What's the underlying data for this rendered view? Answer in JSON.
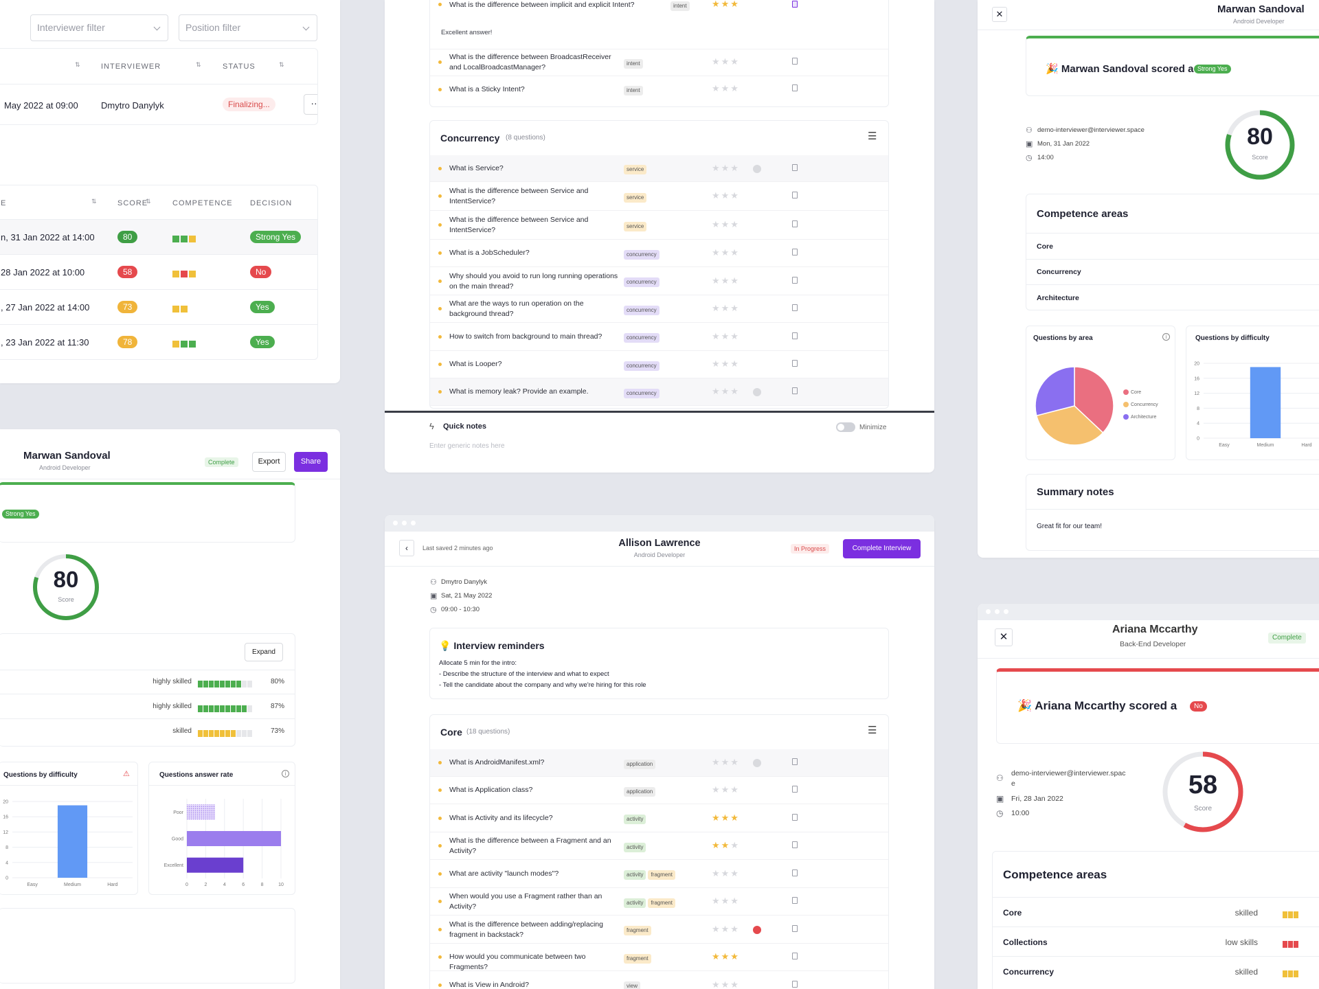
{
  "p1": {
    "filters": {
      "interviewer": "Interviewer filter",
      "position": "Position filter"
    },
    "headers": {
      "interviewer": "INTERVIEWER",
      "status": "STATUS"
    },
    "row": {
      "date": "May 2022 at 09:00",
      "interviewer": "Dmytro Danylyk",
      "status": "Finalizing..."
    }
  },
  "p2": {
    "headers": {
      "date": "E",
      "score": "SCORE",
      "competence": "COMPETENCE",
      "decision": "DECISION"
    },
    "rows": [
      {
        "date": "n, 31 Jan 2022 at 14:00",
        "score": "80",
        "decision": "Strong Yes"
      },
      {
        "date": "28 Jan 2022 at 10:00",
        "score": "58",
        "decision": "No"
      },
      {
        "date": ", 27 Jan 2022 at 14:00",
        "score": "73",
        "decision": "Yes"
      },
      {
        "date": ", 23 Jan 2022 at 11:30",
        "score": "78",
        "decision": "Yes"
      }
    ]
  },
  "p3": {
    "q_top": [
      {
        "text": "What is the difference between implicit and explicit Intent?",
        "tags": [
          "intent"
        ]
      },
      {
        "text": "What is the difference between BroadcastReceiver and LocalBroadcastManager?",
        "tags": [
          "intent"
        ]
      },
      {
        "text": "What is a Sticky Intent?",
        "tags": [
          "intent"
        ]
      }
    ],
    "note": "Excellent answer!",
    "concurrency": {
      "title": "Concurrency",
      "count": "(8 questions)"
    },
    "q_conc": [
      {
        "text": "What is Service?",
        "tags": [
          "service"
        ]
      },
      {
        "text": "What is the difference between Service and IntentService?",
        "tags": [
          "service"
        ]
      },
      {
        "text": "What is the difference between Service and IntentService?",
        "tags": [
          "service"
        ]
      },
      {
        "text": "What is a JobScheduler?",
        "tags": [
          "concurrency"
        ]
      },
      {
        "text": "Why should you avoid to run long running operations on the main thread?",
        "tags": [
          "concurrency"
        ]
      },
      {
        "text": "What are the ways to run operation on the background thread?",
        "tags": [
          "concurrency"
        ]
      },
      {
        "text": "How to switch from background to main thread?",
        "tags": [
          "concurrency"
        ]
      },
      {
        "text": "What is Looper?",
        "tags": [
          "concurrency"
        ]
      },
      {
        "text": "What is memory leak? Provide an example.",
        "tags": [
          "concurrency"
        ]
      }
    ],
    "quick_notes": {
      "title": "Quick notes",
      "placeholder": "Enter generic notes here",
      "minimize": "Minimize"
    }
  },
  "p4": {
    "name": "Marwan Sandoval",
    "role": "Android Developer",
    "scored": "🎉 Marwan Sandoval scored a",
    "decision": "Strong Yes",
    "email": "demo-interviewer@interviewer.space",
    "date": "Mon, 31 Jan 2022",
    "time": "14:00",
    "score": "80",
    "score_label": "Score",
    "competence_title": "Competence areas",
    "areas": [
      "Core",
      "Concurrency",
      "Architecture"
    ],
    "qa_title": "Questions by area",
    "qd_title": "Questions by difficulty",
    "legend": [
      "Core",
      "Concurrency",
      "Architecture"
    ],
    "yticks": [
      "20",
      "16",
      "12",
      "8",
      "4",
      "0"
    ],
    "xcats": [
      "Easy",
      "Medium",
      "Hard"
    ],
    "summary_title": "Summary notes",
    "summary": "Great fit for our team!"
  },
  "p5": {
    "name": "Marwan Sandoval",
    "role": "Android Developer",
    "status": "Complete",
    "export": "Export",
    "share": "Share",
    "decision": "Strong Yes",
    "score": "80",
    "score_label": "Score",
    "expand": "Expand",
    "skills": [
      {
        "level": "highly skilled",
        "pct": "80%"
      },
      {
        "level": "highly skilled",
        "pct": "87%"
      },
      {
        "level": "skilled",
        "pct": "73%"
      }
    ],
    "qd_title": "Questions by difficulty",
    "qar_title": "Questions answer rate",
    "yticks": [
      "20",
      "16",
      "12",
      "8",
      "4",
      "0"
    ],
    "xcats": [
      "Easy",
      "Medium",
      "Hard"
    ],
    "rate_cats": [
      "Poor",
      "Good",
      "Excellent"
    ],
    "rate_ticks": [
      "0",
      "2",
      "4",
      "6",
      "8",
      "10"
    ]
  },
  "p6": {
    "saved": "Last saved 2 minutes ago",
    "name": "Allison Lawrence",
    "role": "Android Developer",
    "status": "In Progress",
    "complete_btn": "Complete Interview",
    "interviewer": "Dmytro Danylyk",
    "date": "Sat, 21 May 2022",
    "time": "09:00 - 10:30",
    "reminders_title": "💡 Interview reminders",
    "reminders": [
      "Allocate 5 min for the intro:",
      "- Describe the structure of the interview and what to expect",
      "- Tell the candidate about the company and why we're hiring for this role"
    ],
    "core": {
      "title": "Core",
      "count": "(18 questions)"
    },
    "q_core": [
      {
        "text": "What is AndroidManifest.xml?",
        "tags": [
          "application"
        ]
      },
      {
        "text": "What is Application class?",
        "tags": [
          "application"
        ]
      },
      {
        "text": "What is Activity and its lifecycle?",
        "tags": [
          "activity"
        ]
      },
      {
        "text": "What is the difference between a Fragment and an Activity?",
        "tags": [
          "activity"
        ]
      },
      {
        "text": "What are activity \"launch modes\"?",
        "tags": [
          "activity",
          "fragment"
        ]
      },
      {
        "text": "When would you use a Fragment rather than an Activity?",
        "tags": [
          "activity",
          "fragment"
        ]
      },
      {
        "text": "What is the difference between adding/replacing fragment in backstack?",
        "tags": [
          "fragment"
        ]
      },
      {
        "text": "How would you communicate between two Fragments?",
        "tags": [
          "fragment"
        ]
      },
      {
        "text": "What is View in Android?",
        "tags": [
          "view"
        ]
      }
    ]
  },
  "p7": {
    "name": "Ariana Mccarthy",
    "role": "Back-End Developer",
    "status": "Complete",
    "scored": "🎉 Ariana Mccarthy scored a",
    "decision": "No",
    "email": "demo-interviewer@interviewer.space",
    "date": "Fri, 28 Jan 2022",
    "time": "10:00",
    "score": "58",
    "score_label": "Score",
    "competence_title": "Competence areas",
    "areas": [
      {
        "name": "Core",
        "level": "skilled"
      },
      {
        "name": "Collections",
        "level": "low skills"
      },
      {
        "name": "Concurrency",
        "level": "skilled"
      }
    ]
  },
  "chart_data": [
    {
      "type": "pie",
      "title": "Questions by area",
      "categories": [
        "Core",
        "Concurrency",
        "Architecture"
      ],
      "values": [
        37,
        34,
        29
      ],
      "colors": [
        "#ea6f80",
        "#f5c06e",
        "#8a6ff0"
      ]
    },
    {
      "type": "bar",
      "title": "Questions by difficulty",
      "categories": [
        "Easy",
        "Medium",
        "Hard"
      ],
      "values": [
        0,
        19,
        0
      ],
      "ylim": [
        0,
        20
      ],
      "color": "#6199f5"
    },
    {
      "type": "bar",
      "title": "Questions by difficulty",
      "categories": [
        "Easy",
        "Medium",
        "Hard"
      ],
      "values": [
        0,
        19,
        0
      ],
      "ylim": [
        0,
        20
      ],
      "color": "#6199f5"
    },
    {
      "type": "bar",
      "orientation": "horizontal",
      "title": "Questions answer rate",
      "categories": [
        "Poor",
        "Good",
        "Excellent"
      ],
      "values": [
        3,
        10,
        6
      ],
      "xlim": [
        0,
        10
      ]
    }
  ]
}
